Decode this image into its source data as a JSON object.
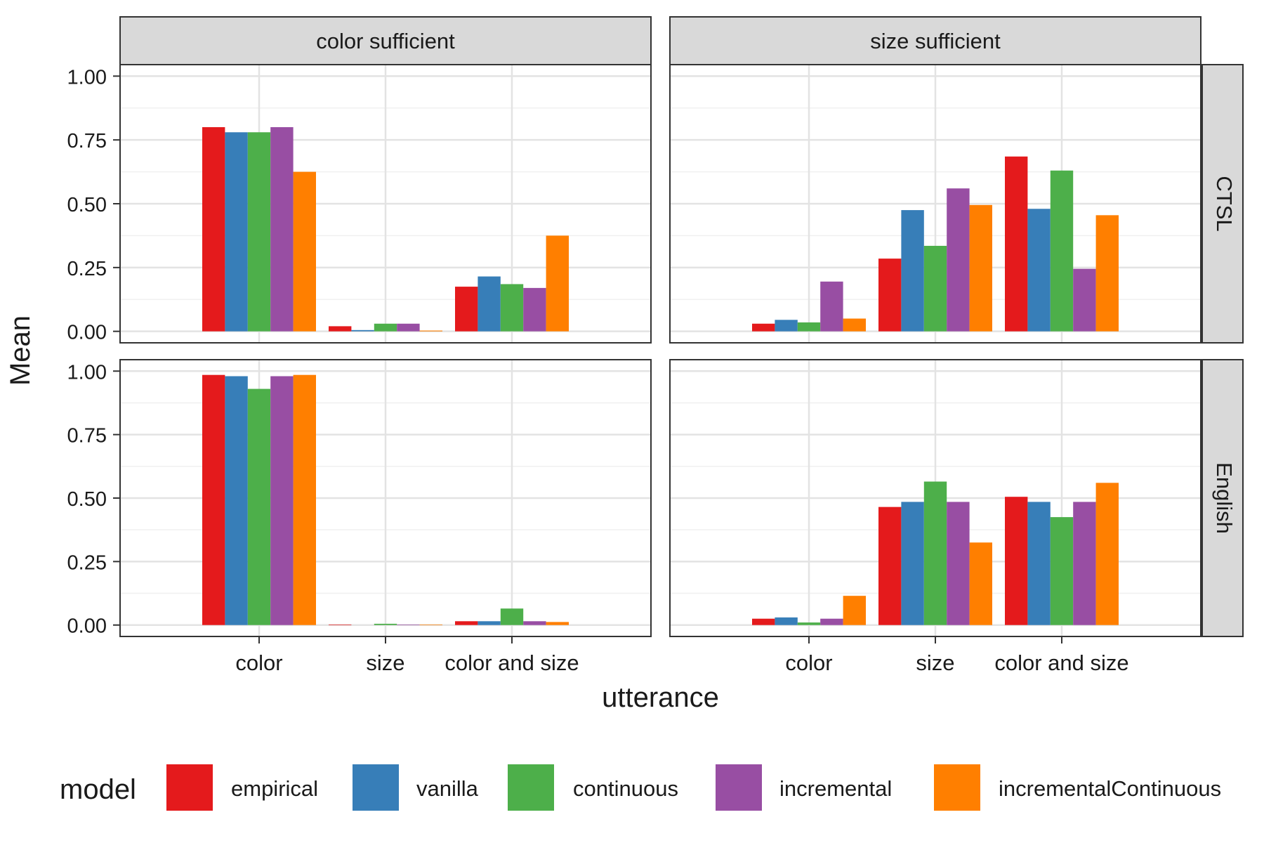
{
  "chart_data": {
    "type": "bar",
    "xlabel": "utterance",
    "ylabel": "Mean",
    "ylim": [
      0,
      1
    ],
    "y_ticks": [
      "0.00",
      "0.25",
      "0.50",
      "0.75",
      "1.00"
    ],
    "categories": [
      "color",
      "size",
      "color and size"
    ],
    "col_facets": [
      "color sufficient",
      "size sufficient"
    ],
    "row_facets": [
      "CTSL",
      "English"
    ],
    "legend": {
      "title": "model",
      "position": "bottom",
      "items": [
        "empirical",
        "vanilla",
        "continuous",
        "incremental",
        "incrementalContinuous"
      ]
    },
    "colors": {
      "empirical": "#e41a1c",
      "vanilla": "#377eb8",
      "continuous": "#4daf4a",
      "incremental": "#984ea3",
      "incrementalContinuous": "#ff7f00"
    },
    "grid": true,
    "panels": [
      {
        "row": "CTSL",
        "col": "color sufficient",
        "series": [
          {
            "name": "empirical",
            "values": [
              0.8,
              0.02,
              0.175
            ]
          },
          {
            "name": "vanilla",
            "values": [
              0.78,
              0.005,
              0.215
            ]
          },
          {
            "name": "continuous",
            "values": [
              0.78,
              0.03,
              0.185
            ]
          },
          {
            "name": "incremental",
            "values": [
              0.8,
              0.03,
              0.17
            ]
          },
          {
            "name": "incrementalContinuous",
            "values": [
              0.625,
              0.003,
              0.375
            ]
          }
        ]
      },
      {
        "row": "CTSL",
        "col": "size sufficient",
        "series": [
          {
            "name": "empirical",
            "values": [
              0.03,
              0.285,
              0.685
            ]
          },
          {
            "name": "vanilla",
            "values": [
              0.045,
              0.475,
              0.48
            ]
          },
          {
            "name": "continuous",
            "values": [
              0.035,
              0.335,
              0.63
            ]
          },
          {
            "name": "incremental",
            "values": [
              0.195,
              0.56,
              0.245
            ]
          },
          {
            "name": "incrementalContinuous",
            "values": [
              0.05,
              0.495,
              0.455
            ]
          }
        ]
      },
      {
        "row": "English",
        "col": "color sufficient",
        "series": [
          {
            "name": "empirical",
            "values": [
              0.985,
              0.002,
              0.015
            ]
          },
          {
            "name": "vanilla",
            "values": [
              0.98,
              0.0,
              0.015
            ]
          },
          {
            "name": "continuous",
            "values": [
              0.93,
              0.005,
              0.065
            ]
          },
          {
            "name": "incremental",
            "values": [
              0.98,
              0.002,
              0.015
            ]
          },
          {
            "name": "incrementalContinuous",
            "values": [
              0.985,
              0.002,
              0.012
            ]
          }
        ]
      },
      {
        "row": "English",
        "col": "size sufficient",
        "series": [
          {
            "name": "empirical",
            "values": [
              0.025,
              0.465,
              0.505
            ]
          },
          {
            "name": "vanilla",
            "values": [
              0.03,
              0.485,
              0.485
            ]
          },
          {
            "name": "continuous",
            "values": [
              0.01,
              0.565,
              0.425
            ]
          },
          {
            "name": "incremental",
            "values": [
              0.025,
              0.485,
              0.485
            ]
          },
          {
            "name": "incrementalContinuous",
            "values": [
              0.115,
              0.325,
              0.56
            ]
          }
        ]
      }
    ]
  }
}
